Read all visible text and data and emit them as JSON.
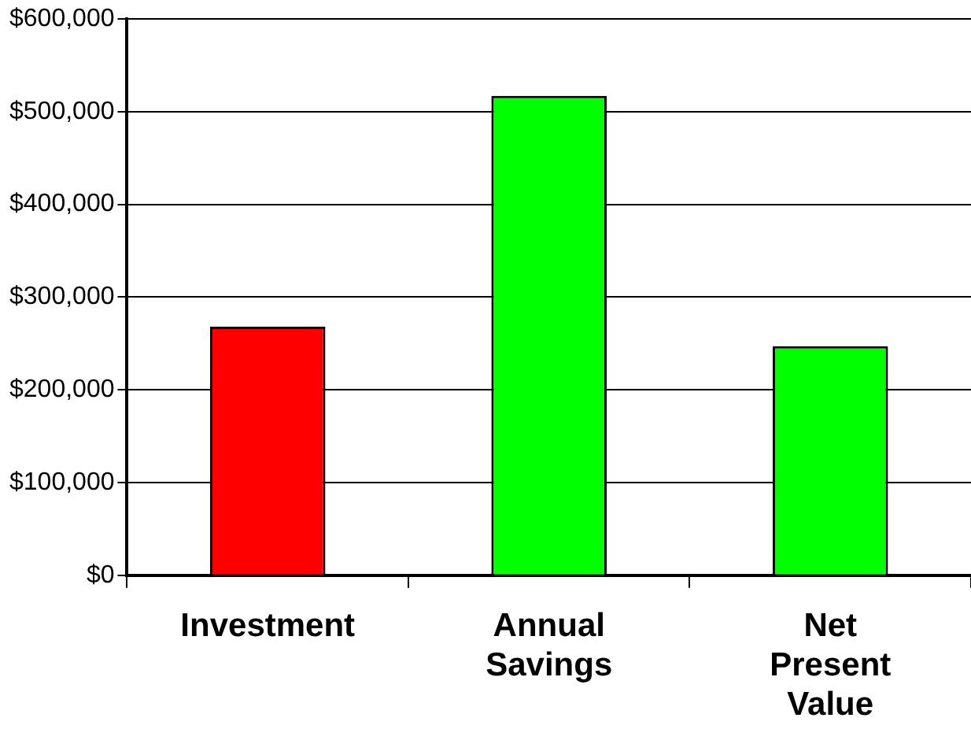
{
  "chart_data": {
    "type": "bar",
    "categories": [
      "Investment",
      "Annual Savings",
      "Net Present Value"
    ],
    "values": [
      268000,
      517000,
      247000
    ],
    "colors": [
      "#ff0000",
      "#00ff00",
      "#00ff00"
    ],
    "ylim": [
      0,
      600000
    ],
    "yticks": [
      {
        "value": 0,
        "label": "$0"
      },
      {
        "value": 100000,
        "label": "$100,000"
      },
      {
        "value": 200000,
        "label": "$200,000"
      },
      {
        "value": 300000,
        "label": "$300,000"
      },
      {
        "value": 400000,
        "label": "$400,000"
      },
      {
        "value": 500000,
        "label": "$500,000"
      },
      {
        "value": 600000,
        "label": "$600,000"
      }
    ],
    "grid": "y",
    "legend": false
  }
}
